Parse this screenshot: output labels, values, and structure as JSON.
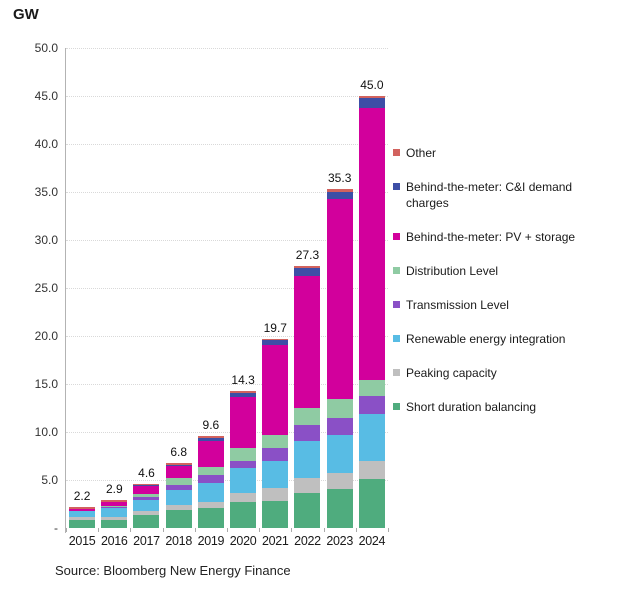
{
  "title": "GW",
  "source": "Source: Bloomberg New Energy Finance",
  "chart_data": {
    "type": "bar",
    "stacked": true,
    "title": "GW",
    "xlabel": "",
    "ylabel": "GW",
    "ylim": [
      0,
      50
    ],
    "ytick_step": 5,
    "ytick_labels": [
      "-",
      "5.0",
      "10.0",
      "15.0",
      "20.0",
      "25.0",
      "30.0",
      "35.0",
      "40.0",
      "45.0",
      "50.0"
    ],
    "grid": "horizontal-dotted",
    "legend_position": "right",
    "categories": [
      "2015",
      "2016",
      "2017",
      "2018",
      "2019",
      "2020",
      "2021",
      "2022",
      "2023",
      "2024"
    ],
    "totals": [
      2.2,
      2.9,
      4.6,
      6.8,
      9.6,
      14.3,
      19.7,
      27.3,
      35.3,
      45.0
    ],
    "total_labels": [
      "2.2",
      "2.9",
      "4.6",
      "6.8",
      "9.6",
      "14.3",
      "19.7",
      "27.3",
      "35.3",
      "45.0"
    ],
    "series": [
      {
        "name": "Short duration balancing",
        "slug": "short-duration-balancing",
        "color": "#4FAC7E",
        "values": [
          0.8,
          0.8,
          1.4,
          1.9,
          2.1,
          2.7,
          2.8,
          3.6,
          4.1,
          5.1
        ]
      },
      {
        "name": "Peaking capacity",
        "slug": "peaking-capacity",
        "color": "#BFBFBF",
        "values": [
          0.4,
          0.4,
          0.4,
          0.5,
          0.6,
          1.0,
          1.4,
          1.6,
          1.6,
          1.9
        ]
      },
      {
        "name": "Renewable energy integration",
        "slug": "renewable-energy-integration",
        "color": "#58BCE4",
        "values": [
          0.6,
          0.9,
          1.1,
          1.6,
          2.0,
          2.6,
          2.8,
          3.9,
          4.0,
          4.9
        ]
      },
      {
        "name": "Transmission Level",
        "slug": "transmission-level",
        "color": "#8A50C6",
        "values": [
          0.0,
          0.1,
          0.3,
          0.5,
          0.8,
          0.7,
          1.3,
          1.6,
          1.8,
          1.9
        ]
      },
      {
        "name": "Distribution Level",
        "slug": "distribution-level",
        "color": "#8FCBA3",
        "values": [
          0.0,
          0.1,
          0.3,
          0.7,
          0.9,
          1.3,
          1.4,
          1.8,
          1.9,
          1.6
        ]
      },
      {
        "name": "Behind-the-meter: PV + storage",
        "slug": "btm-pv-storage",
        "color": "#D2009C",
        "values": [
          0.2,
          0.4,
          0.9,
          1.3,
          2.7,
          5.4,
          9.4,
          13.8,
          20.9,
          28.4
        ]
      },
      {
        "name": "Behind-the-meter: C&I demand charges",
        "slug": "btm-ci-demand-charges",
        "color": "#3D4EA6",
        "values": [
          0.0,
          0.0,
          0.1,
          0.1,
          0.3,
          0.4,
          0.5,
          0.8,
          0.7,
          1.0
        ]
      },
      {
        "name": "Other",
        "slug": "other",
        "color": "#D2625E",
        "values": [
          0.2,
          0.2,
          0.1,
          0.2,
          0.2,
          0.2,
          0.1,
          0.2,
          0.3,
          0.2
        ]
      }
    ]
  }
}
